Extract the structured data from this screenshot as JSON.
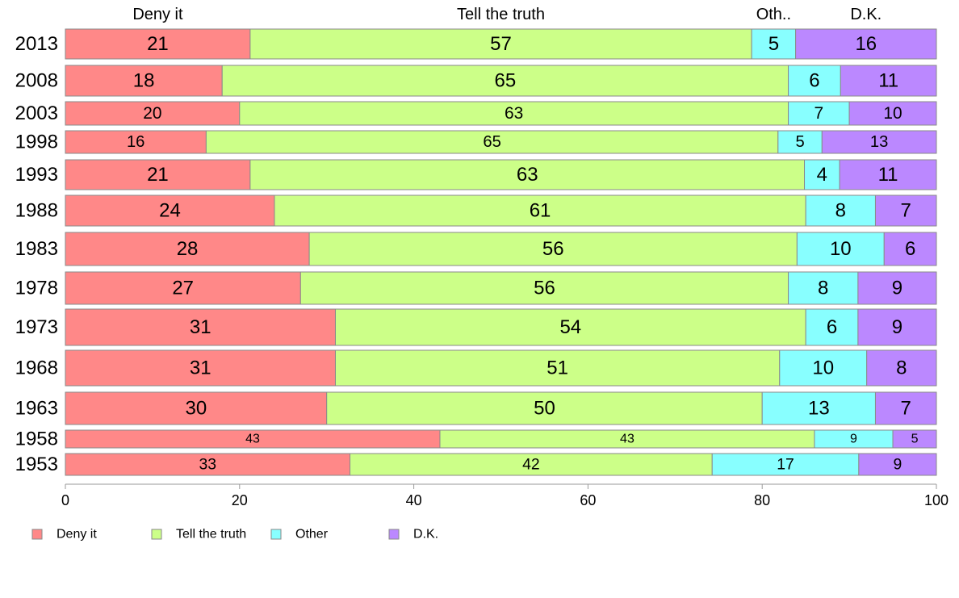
{
  "chart_data": {
    "type": "bar",
    "orientation": "horizontal",
    "stacked": true,
    "categories": [
      "2013",
      "2008",
      "2003",
      "1998",
      "1993",
      "1988",
      "1983",
      "1978",
      "1973",
      "1968",
      "1963",
      "1958",
      "1953"
    ],
    "series": [
      {
        "name": "Deny it",
        "color": "#ff8888",
        "values": [
          21,
          18,
          20,
          16,
          21,
          24,
          28,
          27,
          31,
          31,
          30,
          43,
          33
        ]
      },
      {
        "name": "Tell the truth",
        "color": "#ccff88",
        "values": [
          57,
          65,
          63,
          65,
          63,
          61,
          56,
          56,
          54,
          51,
          50,
          43,
          42
        ]
      },
      {
        "name": "Other",
        "color": "#88ffff",
        "values": [
          5,
          6,
          7,
          5,
          4,
          8,
          10,
          8,
          6,
          10,
          13,
          9,
          17
        ]
      },
      {
        "name": "D.K.",
        "color": "#bb88ff",
        "values": [
          16,
          11,
          10,
          13,
          11,
          7,
          6,
          9,
          9,
          8,
          7,
          5,
          9
        ]
      }
    ],
    "top_labels": [
      "Deny it",
      "Tell the truth",
      "Oth..",
      "D.K."
    ],
    "xlim": [
      0,
      100
    ],
    "xticks": [
      "0",
      "20",
      "40",
      "60",
      "80",
      "100"
    ],
    "grid": false,
    "legend_position": "bottom-left",
    "title": "",
    "xlabel": "",
    "ylabel": ""
  }
}
